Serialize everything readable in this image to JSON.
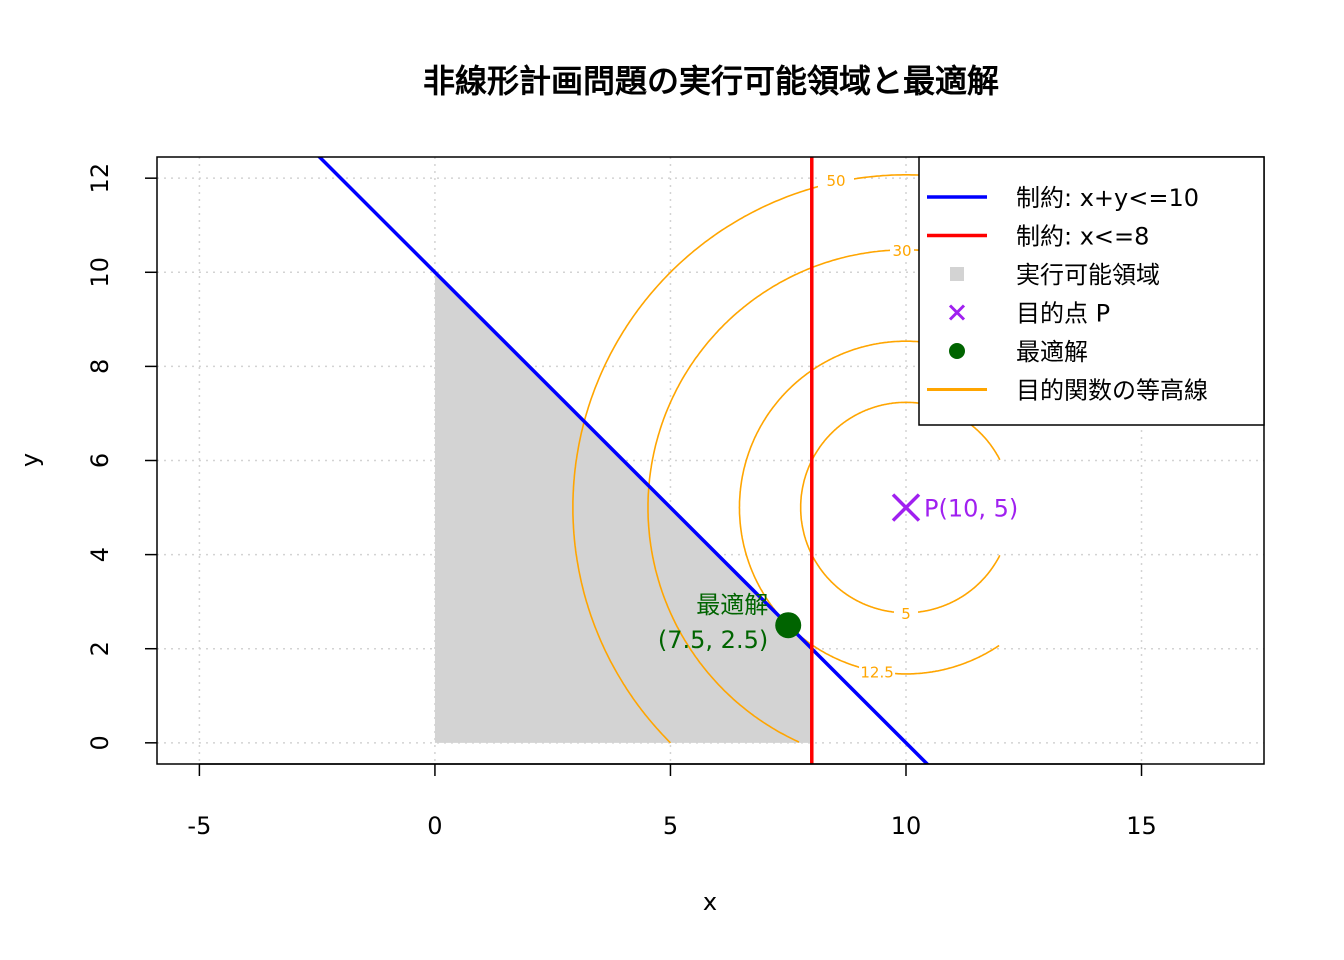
{
  "chart_data": {
    "type": "line",
    "title": "非線形計画問題の実行可能領域と最適解",
    "xlabel": "x",
    "ylabel": "y",
    "xlim": [
      -5.9,
      17.6
    ],
    "ylim": [
      -0.45,
      12.45
    ],
    "x_ticks": [
      -5,
      0,
      5,
      10,
      15
    ],
    "y_ticks": [
      0,
      2,
      4,
      6,
      8,
      10,
      12
    ],
    "grid": true,
    "legend_position": "top-right",
    "series": [
      {
        "name": "制約: x+y<=10",
        "kind": "line",
        "equation": "x + y = 10",
        "x": [
          -2.5,
          10.5
        ],
        "y": [
          12.5,
          -0.5
        ],
        "color": "#0000FF"
      },
      {
        "name": "制約: x<=8",
        "kind": "vline",
        "x": 8,
        "color": "#FF0000"
      },
      {
        "name": "実行可能領域",
        "kind": "polygon",
        "x": [
          0,
          0,
          8,
          8
        ],
        "y": [
          0,
          10,
          2,
          0
        ],
        "color": "#D3D3D3"
      },
      {
        "name": "目的点 P",
        "kind": "point",
        "x": 10,
        "y": 5,
        "label": "P(10, 5)",
        "color": "#A020F0"
      },
      {
        "name": "最適解",
        "kind": "point",
        "x": 7.5,
        "y": 2.5,
        "label_line1": "最適解",
        "label_line2": "(7.5, 2.5)",
        "color": "#006400"
      },
      {
        "name": "目的関数の等高線",
        "kind": "contour",
        "center": [
          10,
          5
        ],
        "levels": [
          5,
          12.5,
          30,
          50
        ],
        "level_labels": [
          "5",
          "12.5",
          "30",
          "50"
        ],
        "color": "#FFA500"
      }
    ]
  }
}
